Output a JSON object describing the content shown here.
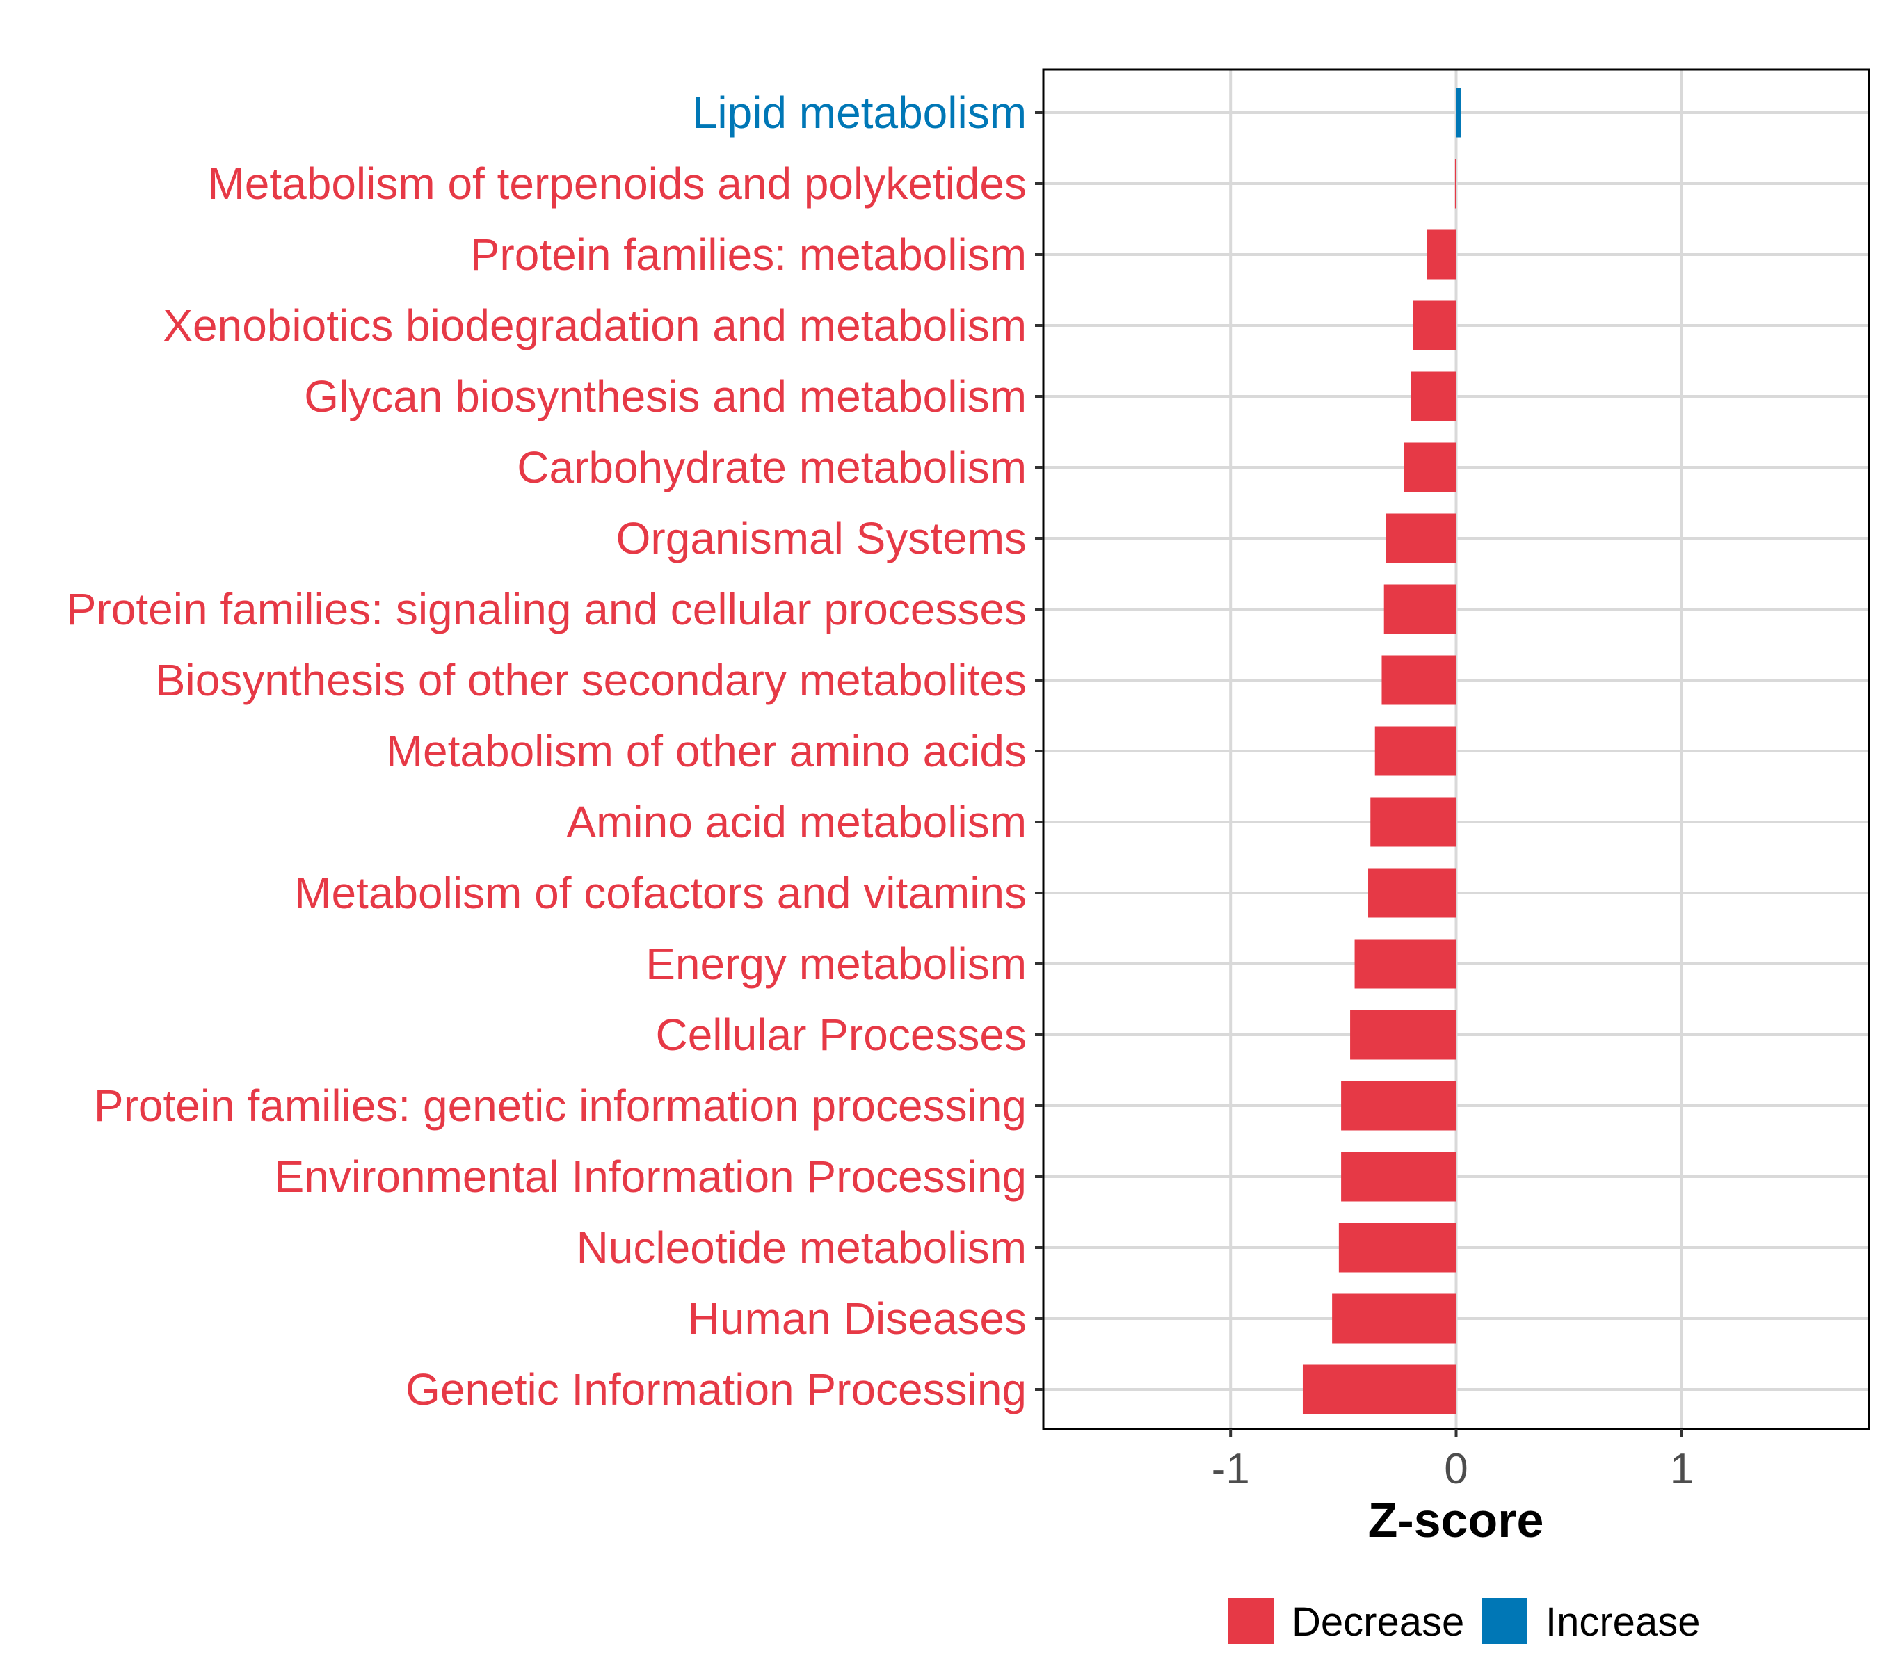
{
  "chart_data": {
    "type": "bar",
    "orientation": "horizontal",
    "categories": [
      "Lipid metabolism",
      "Metabolism of terpenoids and polyketides",
      "Protein families: metabolism",
      "Xenobiotics biodegradation and metabolism",
      "Glycan biosynthesis and metabolism",
      "Carbohydrate metabolism",
      "Organismal Systems",
      "Protein families: signaling and cellular processes",
      "Biosynthesis of other secondary metabolites",
      "Metabolism of other amino acids",
      "Amino acid metabolism",
      "Metabolism of cofactors and vitamins",
      "Energy metabolism",
      "Cellular Processes",
      "Protein families: genetic information processing",
      "Environmental Information Processing",
      "Nucleotide metabolism",
      "Human Diseases",
      "Genetic Information Processing"
    ],
    "values": [
      0.02,
      -0.005,
      -0.13,
      -0.19,
      -0.2,
      -0.23,
      -0.31,
      -0.32,
      -0.33,
      -0.36,
      -0.38,
      -0.39,
      -0.45,
      -0.47,
      -0.51,
      -0.51,
      -0.52,
      -0.55,
      -0.68
    ],
    "groups": [
      "Increase",
      "Decrease",
      "Decrease",
      "Decrease",
      "Decrease",
      "Decrease",
      "Decrease",
      "Decrease",
      "Decrease",
      "Decrease",
      "Decrease",
      "Decrease",
      "Decrease",
      "Decrease",
      "Decrease",
      "Decrease",
      "Decrease",
      "Decrease",
      "Decrease"
    ],
    "title": "",
    "xlabel": "Z-score",
    "ylabel": "",
    "xlim": [
      -1.83,
      1.83
    ],
    "xticks": [
      -1,
      0,
      1
    ],
    "xtick_labels": [
      "-1",
      "0",
      "1"
    ],
    "grid": true,
    "legend": {
      "position": "bottom",
      "entries": [
        {
          "label": "Decrease",
          "color": "#e63946"
        },
        {
          "label": "Increase",
          "color": "#0077b6"
        }
      ]
    },
    "colors": {
      "Decrease": "#e63946",
      "Increase": "#0077b6"
    }
  }
}
